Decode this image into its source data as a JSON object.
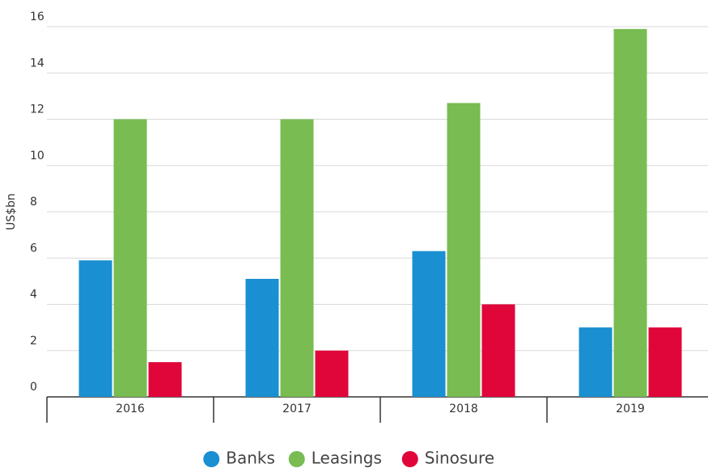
{
  "chart_data": {
    "type": "bar",
    "y_label": "US$bn",
    "categories": [
      "2016",
      "2017",
      "2018",
      "2019"
    ],
    "series": [
      {
        "name": "Banks",
        "color": "#1a8fd1",
        "values": [
          5.9,
          5.1,
          6.3,
          3
        ]
      },
      {
        "name": "Leasings",
        "color": "#78bc52",
        "values": [
          12,
          12,
          12.7,
          15.9
        ]
      },
      {
        "name": "Sinosure",
        "color": "#e0063a",
        "values": [
          1.5,
          2,
          4,
          3
        ]
      }
    ],
    "ylim": [
      0,
      16
    ],
    "yticks": [
      0,
      2,
      4,
      6,
      8,
      10,
      12,
      14,
      16
    ],
    "grid": true,
    "legend": "bottom"
  }
}
